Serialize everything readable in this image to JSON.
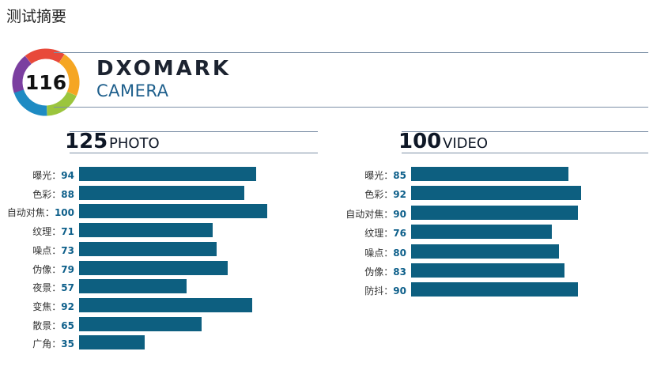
{
  "page": {
    "title": "测试摘要"
  },
  "badge": {
    "score": "116"
  },
  "brand": {
    "name": "DXOMARK",
    "subtitle": "CAMERA"
  },
  "colors": {
    "bar": "#0d5f80",
    "value_text": "#0d5f8a",
    "ring": [
      "#e8493a",
      "#f5a623",
      "#9bc53d",
      "#1e8bc3",
      "#7b3fa0"
    ]
  },
  "sections": {
    "photo": {
      "score": "125",
      "label": "PHOTO"
    },
    "video": {
      "score": "100",
      "label": "VIDEO"
    }
  },
  "chart_data": [
    {
      "type": "bar",
      "orientation": "horizontal",
      "title": "PHOTO",
      "categories": [
        "曝光",
        "色彩",
        "自动对焦",
        "纹理",
        "噪点",
        "伪像",
        "夜景",
        "变焦",
        "散景",
        "广角"
      ],
      "values": [
        94,
        88,
        100,
        71,
        73,
        79,
        57,
        92,
        65,
        35
      ],
      "xlim": [
        0,
        100
      ]
    },
    {
      "type": "bar",
      "orientation": "horizontal",
      "title": "VIDEO",
      "categories": [
        "曝光",
        "色彩",
        "自动对焦",
        "纹理",
        "噪点",
        "伪像",
        "防抖"
      ],
      "values": [
        85,
        92,
        90,
        76,
        80,
        83,
        90
      ],
      "xlim": [
        0,
        100
      ]
    }
  ]
}
